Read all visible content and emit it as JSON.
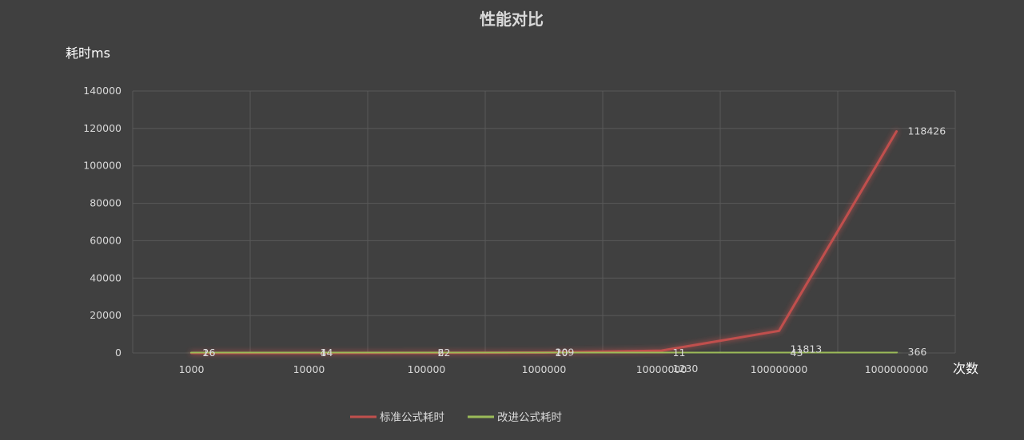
{
  "chart_data": {
    "type": "line",
    "title": "性能对比",
    "ylabel": "耗时ms",
    "xlabel": "次数",
    "categories": [
      "1000",
      "10000",
      "100000",
      "1000000",
      "10000000",
      "100000000",
      "1000000000"
    ],
    "series": [
      {
        "name": "标准公式耗时",
        "color": "#c0504d",
        "values": [
          16,
          14,
          62,
          209,
          1230,
          11813,
          118426
        ]
      },
      {
        "name": "改进公式耗时",
        "color": "#9bbb59",
        "values": [
          26,
          4,
          2,
          10,
          11,
          43,
          366
        ]
      }
    ],
    "ylim": [
      0,
      140000
    ],
    "yticks": [
      0,
      20000,
      40000,
      60000,
      80000,
      100000,
      120000,
      140000
    ],
    "grid": true,
    "legend": "bottom",
    "data_labels": true
  }
}
